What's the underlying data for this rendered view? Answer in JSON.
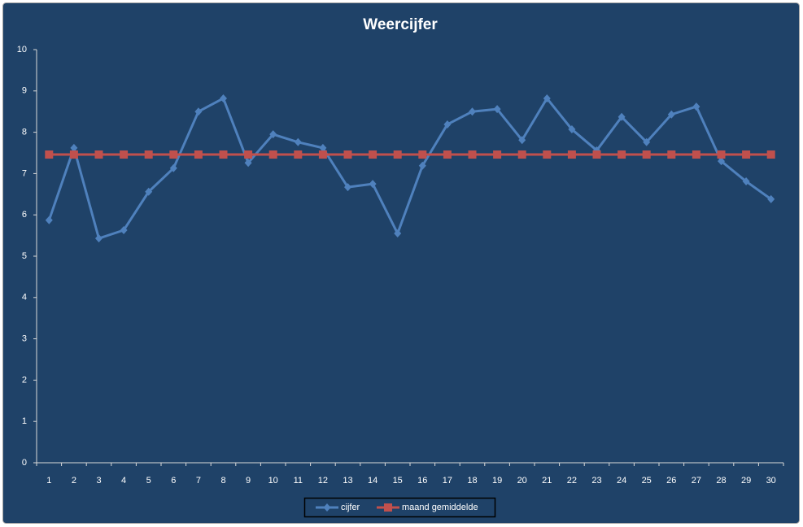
{
  "chart_data": {
    "type": "line",
    "title": "Weercijfer",
    "categories": [
      "1",
      "2",
      "3",
      "4",
      "5",
      "6",
      "7",
      "8",
      "9",
      "10",
      "11",
      "12",
      "13",
      "14",
      "15",
      "16",
      "17",
      "18",
      "19",
      "20",
      "21",
      "22",
      "23",
      "24",
      "25",
      "26",
      "27",
      "28",
      "29",
      "30"
    ],
    "series": [
      {
        "name": "cijfer",
        "color": "#4f81bd",
        "marker": "diamond",
        "values": [
          5.87,
          7.62,
          5.43,
          5.63,
          6.56,
          7.13,
          8.5,
          8.82,
          7.26,
          7.95,
          7.76,
          7.62,
          6.67,
          6.75,
          5.55,
          7.19,
          8.19,
          8.5,
          8.56,
          7.81,
          8.82,
          8.07,
          7.56,
          8.37,
          7.76,
          8.43,
          8.62,
          7.3,
          6.81,
          6.38
        ]
      },
      {
        "name": "maand gemiddelde",
        "color": "#c0504d",
        "marker": "square",
        "values": [
          7.46,
          7.46,
          7.46,
          7.46,
          7.46,
          7.46,
          7.46,
          7.46,
          7.46,
          7.46,
          7.46,
          7.46,
          7.46,
          7.46,
          7.46,
          7.46,
          7.46,
          7.46,
          7.46,
          7.46,
          7.46,
          7.46,
          7.46,
          7.46,
          7.46,
          7.46,
          7.46,
          7.46,
          7.46,
          7.46
        ]
      }
    ],
    "ylim": [
      0,
      10
    ],
    "yticks": [
      0,
      1,
      2,
      3,
      4,
      5,
      6,
      7,
      8,
      9,
      10
    ],
    "grid": false,
    "legend": "bottom"
  }
}
